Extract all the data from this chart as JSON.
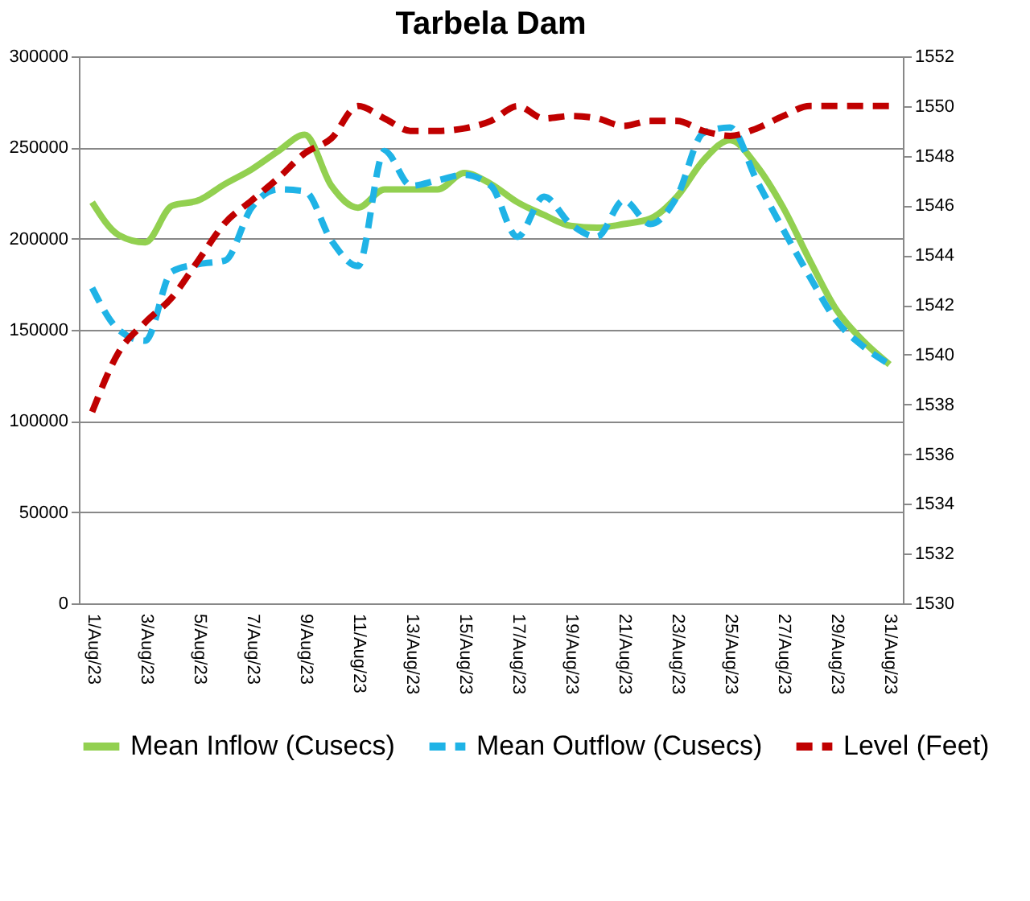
{
  "chart_data": {
    "type": "line",
    "title": "Tarbela Dam",
    "categories": [
      "1/Aug/23",
      null,
      "3/Aug/23",
      null,
      "5/Aug/23",
      null,
      "7/Aug/23",
      null,
      "9/Aug/23",
      null,
      "11/Aug/23",
      null,
      "13/Aug/23",
      null,
      "15/Aug/23",
      null,
      "17/Aug/23",
      null,
      "19/Aug/23",
      null,
      "21/Aug/23",
      null,
      "23/Aug/23",
      null,
      "25/Aug/23",
      null,
      "27/Aug/23",
      null,
      "29/Aug/23",
      null,
      "31/Aug/23"
    ],
    "series": [
      {
        "name": "Mean Inflow (Cusecs)",
        "color": "#92d050",
        "line_style": "solid",
        "values": [
          220000,
          202000,
          198000,
          218000,
          221000,
          230000,
          238000,
          248000,
          257000,
          229000,
          217000,
          227000,
          227000,
          227000,
          236000,
          230000,
          220000,
          213000,
          207000,
          206000,
          208000,
          211000,
          223000,
          243000,
          254000,
          240000,
          217000,
          188000,
          161000,
          144000,
          131000
        ]
      },
      {
        "name": "Mean Outflow (Cusecs)",
        "color": "#1fb3e6",
        "line_style": "dashed",
        "values": [
          173000,
          150000,
          144000,
          182000,
          186000,
          188000,
          217000,
          227000,
          226000,
          199000,
          185000,
          248000,
          229000,
          232000,
          235000,
          229000,
          201000,
          223000,
          208000,
          201000,
          221000,
          208000,
          223000,
          258000,
          261000,
          232000,
          205000,
          179000,
          155000,
          141000,
          131000
        ]
      },
      {
        "name": "Level (Feet)",
        "color": "#c00000",
        "line_style": "dashed",
        "axis": "y2",
        "values": [
          1537.7,
          1540.1,
          1541.3,
          1542.3,
          1543.8,
          1545.3,
          1546.2,
          1547.1,
          1548.1,
          1548.7,
          1550.0,
          1549.5,
          1549.0,
          1549.0,
          1549.1,
          1549.4,
          1550.0,
          1549.5,
          1549.6,
          1549.5,
          1549.2,
          1549.4,
          1549.4,
          1549.0,
          1548.8,
          1549.1,
          1549.6,
          1550.0,
          1550.0,
          1550.0,
          1550.0
        ]
      }
    ],
    "ylim": [
      0,
      300000
    ],
    "yticks": [
      0,
      50000,
      100000,
      150000,
      200000,
      250000,
      300000
    ],
    "y2lim": [
      1530,
      1552
    ],
    "y2ticks": [
      1530,
      1532,
      1534,
      1536,
      1538,
      1540,
      1542,
      1544,
      1546,
      1548,
      1550,
      1552
    ],
    "grid": "y",
    "legend": "bottom",
    "marker": "none"
  }
}
